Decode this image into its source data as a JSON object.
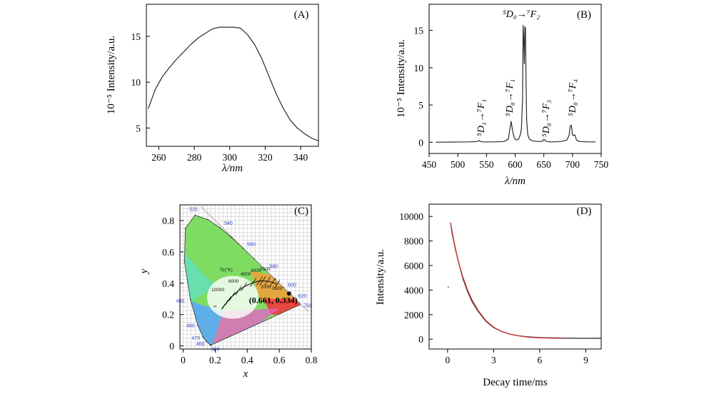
{
  "chart_data": [
    {
      "type": "line",
      "panel_label": "(A)",
      "xlabel": "λ/nm",
      "ylabel": "10⁻⁵ Intensity/a.u.",
      "xlim": [
        253,
        350
      ],
      "ylim": [
        3,
        18.5
      ],
      "xticks": [
        260,
        280,
        300,
        320,
        340
      ],
      "yticks": [
        5,
        10,
        15
      ],
      "series": [
        {
          "x": [
            254,
            258,
            262,
            266,
            270,
            274,
            278,
            282,
            286,
            290,
            294,
            298,
            302,
            306,
            310,
            314,
            318,
            322,
            326,
            330,
            334,
            338,
            342,
            346,
            350
          ],
          "y": [
            7.1,
            9.2,
            10.6,
            11.6,
            12.5,
            13.3,
            14.1,
            14.8,
            15.3,
            15.8,
            16.0,
            16.0,
            16.0,
            15.9,
            15.2,
            14.1,
            12.6,
            10.7,
            8.8,
            7.2,
            5.9,
            5.0,
            4.4,
            3.9,
            3.6
          ]
        }
      ]
    },
    {
      "type": "line",
      "panel_label": "(B)",
      "xlabel": "λ/nm",
      "ylabel": "10⁻⁵ Intensity/a.u.",
      "xlim": [
        450,
        750
      ],
      "ylim": [
        -1.5,
        18.5
      ],
      "xticks": [
        450,
        500,
        550,
        600,
        650,
        700,
        750
      ],
      "yticks": [
        0,
        5,
        10,
        15
      ],
      "series": [
        {
          "x": [
            462,
            520,
            534,
            537,
            540,
            544,
            560,
            580,
            588,
            590,
            593,
            596,
            599,
            602,
            606,
            609,
            611,
            613,
            614,
            615,
            616,
            617,
            618,
            619,
            620,
            622,
            625,
            630,
            640,
            648,
            650,
            653,
            656,
            662,
            680,
            690,
            694,
            696,
            698,
            700,
            702,
            704,
            707,
            712,
            730,
            740
          ],
          "y": [
            0.0,
            0.05,
            0.1,
            0.25,
            0.1,
            0.05,
            0.05,
            0.1,
            0.4,
            1.4,
            2.8,
            1.3,
            0.5,
            0.3,
            0.4,
            1.0,
            1.8,
            6.0,
            15.7,
            14.0,
            10.5,
            15.5,
            15.2,
            8.0,
            3.0,
            1.0,
            0.4,
            0.2,
            0.1,
            0.15,
            0.4,
            0.2,
            0.1,
            0.05,
            0.1,
            0.3,
            0.9,
            2.1,
            2.3,
            1.0,
            0.9,
            1.0,
            0.3,
            0.1,
            0.05,
            0.05
          ]
        }
      ],
      "annotations": [
        {
          "label": "⁵D₁→⁷F₁"
        },
        {
          "label": "⁵D₀→⁷F₁"
        },
        {
          "label": "⁵D₀→⁷F₂"
        },
        {
          "label": "⁵D₀→⁷F₃"
        },
        {
          "label": "⁵D₀→⁷F₄"
        }
      ]
    },
    {
      "type": "scatter",
      "panel_label": "(C)",
      "xlabel": "x",
      "ylabel": "y",
      "xlim": [
        -0.02,
        0.8
      ],
      "ylim": [
        -0.02,
        0.9
      ],
      "xticks": [
        0,
        0.2,
        0.4,
        0.6,
        0.8
      ],
      "yticks": [
        0,
        0.2,
        0.4,
        0.6,
        0.8
      ],
      "locus": {
        "x": [
          0.1741,
          0.1738,
          0.1721,
          0.1666,
          0.144,
          0.1241,
          0.0913,
          0.0454,
          0.0082,
          0.0139,
          0.0743,
          0.1547,
          0.2296,
          0.3016,
          0.3731,
          0.4441,
          0.5125,
          0.5752,
          0.627,
          0.6658,
          0.6915,
          0.7079,
          0.7347
        ],
        "y": [
          0.005,
          0.0049,
          0.0048,
          0.0089,
          0.0297,
          0.0578,
          0.1327,
          0.295,
          0.5384,
          0.7502,
          0.8338,
          0.8059,
          0.7543,
          0.6923,
          0.6245,
          0.5547,
          0.4866,
          0.4242,
          0.3725,
          0.334,
          0.3083,
          0.292,
          0.2653
        ]
      },
      "wavelength_labels": [
        {
          "label": "460",
          "x": 0.144,
          "y": 0.03
        },
        {
          "label": "470",
          "x": 0.124,
          "y": 0.058
        },
        {
          "label": "480",
          "x": 0.091,
          "y": 0.133
        },
        {
          "label": "490",
          "x": 0.045,
          "y": 0.295
        },
        {
          "label": "520",
          "x": 0.074,
          "y": 0.834
        },
        {
          "label": "540",
          "x": 0.23,
          "y": 0.754
        },
        {
          "label": "560",
          "x": 0.373,
          "y": 0.624
        },
        {
          "label": "580",
          "x": 0.512,
          "y": 0.487
        },
        {
          "label": "600",
          "x": 0.627,
          "y": 0.373
        },
        {
          "label": "620",
          "x": 0.691,
          "y": 0.308
        },
        {
          "label": "700",
          "x": 0.735,
          "y": 0.265
        },
        {
          "label": "380",
          "x": 0.174,
          "y": 0.005
        }
      ],
      "planckian": {
        "x": [
          0.24,
          0.252,
          0.264,
          0.281,
          0.306,
          0.345,
          0.38,
          0.437,
          0.477,
          0.497,
          0.527,
          0.559,
          0.586
        ],
        "y": [
          0.234,
          0.252,
          0.267,
          0.288,
          0.316,
          0.352,
          0.377,
          0.404,
          0.414,
          0.415,
          0.413,
          0.405,
          0.393
        ]
      },
      "cct_labels": [
        "Tc(°K)",
        "10000",
        "6000",
        "4000",
        "3000",
        "2500",
        "2000",
        "1500",
        "∞"
      ],
      "point": {
        "x": 0.661,
        "y": 0.334,
        "label": "(0.661, 0.334)"
      }
    },
    {
      "type": "scatter",
      "panel_label": "(D)",
      "xlabel": "Decay time/ms",
      "ylabel": "Intensity/a.u.",
      "xlim": [
        -1.2,
        10
      ],
      "ylim": [
        -800,
        11000
      ],
      "xticks": [
        0,
        3,
        6,
        9
      ],
      "yticks": [
        0,
        2000,
        4000,
        6000,
        8000,
        10000
      ],
      "series": [
        {
          "name": "data",
          "x": [
            0.2,
            0.3,
            0.5,
            0.7,
            1.0,
            1.3,
            1.6,
            2.0,
            2.5,
            3.0,
            3.5,
            4.0,
            4.5,
            5.0,
            5.5,
            6.0,
            6.5,
            7.0,
            7.5,
            8.0,
            8.5,
            9.0,
            9.5,
            10.0
          ],
          "y": [
            9500,
            8600,
            7400,
            6350,
            4950,
            3900,
            3050,
            2250,
            1460,
            950,
            640,
            430,
            300,
            220,
            170,
            130,
            110,
            100,
            90,
            85,
            80,
            78,
            75,
            70
          ]
        },
        {
          "name": "fit",
          "x": [
            0.2,
            0.4,
            0.6,
            0.8,
            1.0,
            1.3,
            1.6,
            2.0,
            2.5,
            3.0,
            3.5,
            4.0,
            4.5,
            5.0,
            5.5,
            6.0,
            6.5,
            7.0,
            7.6
          ],
          "y": [
            9500,
            8120,
            6950,
            5950,
            5080,
            4030,
            3190,
            2340,
            1520,
            990,
            650,
            430,
            290,
            200,
            140,
            105,
            85,
            72,
            65
          ]
        }
      ],
      "outlier": {
        "x": 0.05,
        "y": 4250
      }
    }
  ],
  "colors": {
    "axis": "#000000",
    "line": "#2b2b2b",
    "fit": "#e8373a",
    "grid": "#c9c9c9",
    "cie_label": "#3344cc"
  }
}
